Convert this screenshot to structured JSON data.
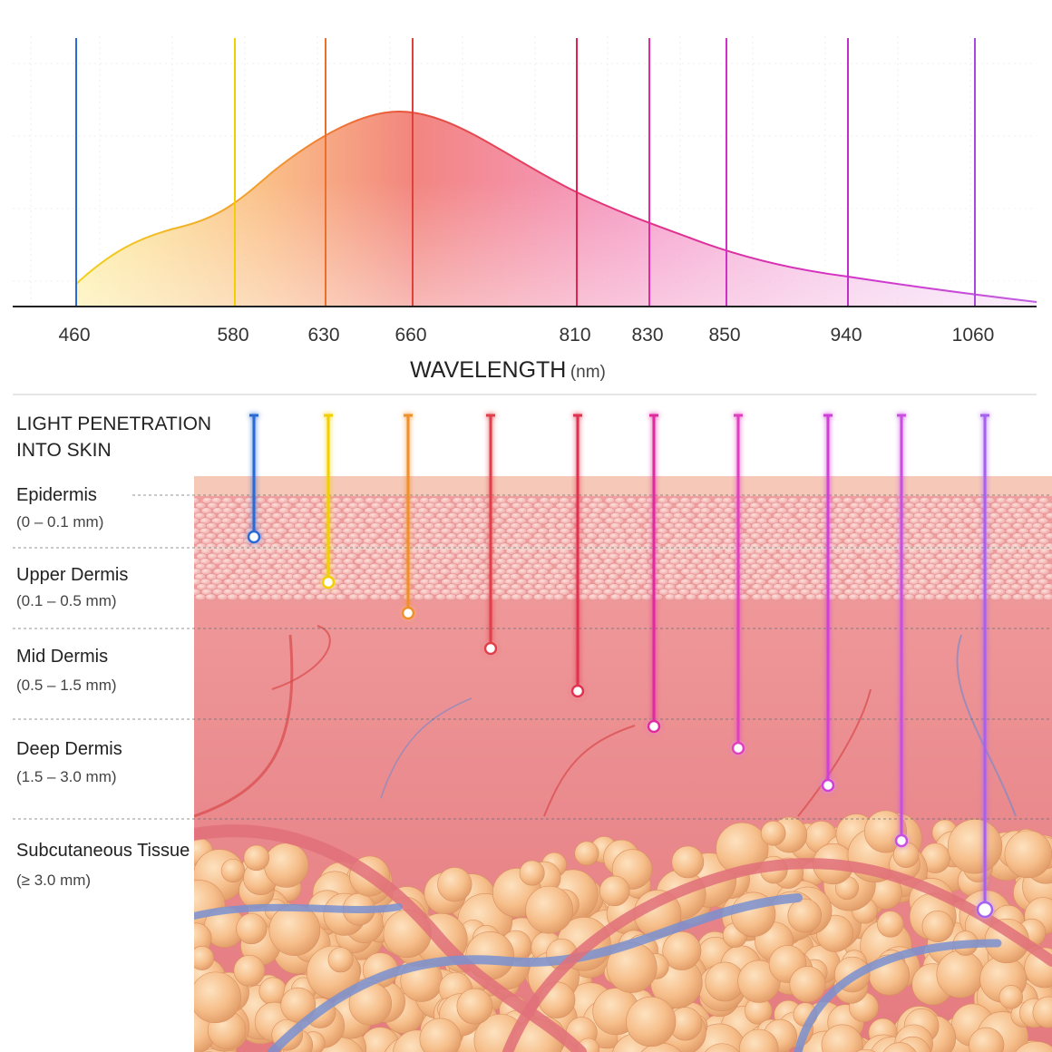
{
  "spectrum": {
    "ticks": [
      "460",
      "580",
      "630",
      "660",
      "810",
      "830",
      "850",
      "940",
      "1060"
    ],
    "axis_title": "WAVELENGTH",
    "axis_unit": "(nm)"
  },
  "penetration": {
    "title_line1": "LIGHT PENETRATION",
    "title_line2": "INTO SKIN",
    "layers": [
      {
        "name": "Epidermis",
        "range": "(0 – 0.1 mm)"
      },
      {
        "name": "Upper Dermis",
        "range": "(0.1 – 0.5 mm)"
      },
      {
        "name": "Mid Dermis",
        "range": "(0.5 – 1.5 mm)"
      },
      {
        "name": "Deep Dermis",
        "range": "(1.5 – 3.0 mm)"
      },
      {
        "name": "Subcutaneous Tissue",
        "range": "(≥ 3.0 mm)"
      }
    ]
  }
}
